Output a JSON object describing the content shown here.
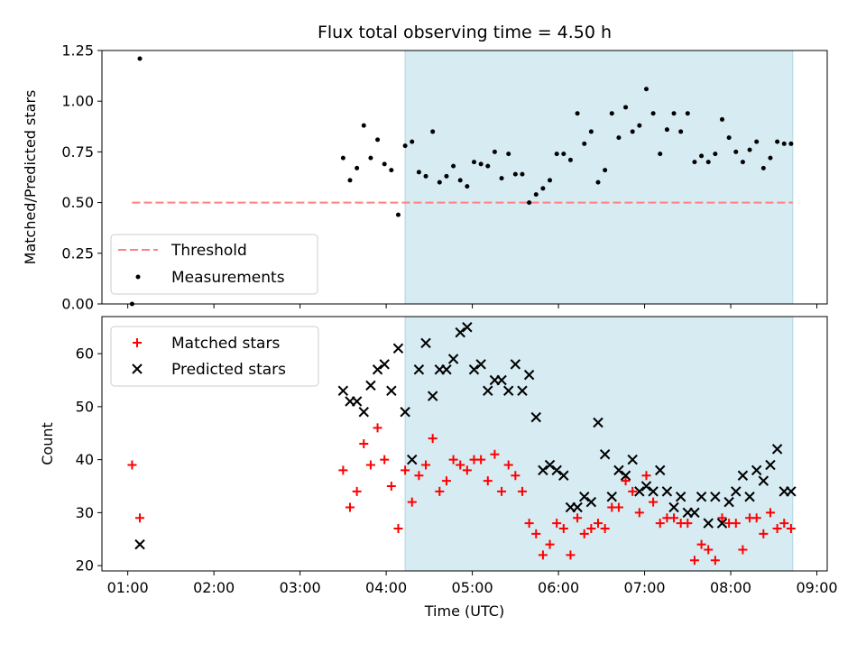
{
  "chart_data": [
    {
      "type": "scatter",
      "title": "Flux total observing time = 4.50 h",
      "ylabel": "Matched/Predicted stars",
      "xlabel": "",
      "ylim": [
        0,
        1.25
      ],
      "yticks": [
        "0.00",
        "0.25",
        "0.50",
        "0.75",
        "1.00",
        "1.25"
      ],
      "ytick_values": [
        0,
        0.25,
        0.5,
        0.75,
        1.0,
        1.25
      ],
      "x_tick_hours": [
        1,
        2,
        3,
        4,
        5,
        6,
        7,
        8,
        9
      ],
      "shaded_region": {
        "start_hour": 4.22,
        "end_hour": 8.72,
        "color": "#add8e6"
      },
      "threshold": {
        "name": "Threshold",
        "value": 0.5,
        "start_hour": 1.05,
        "end_hour": 8.72,
        "color": "#ff8080"
      },
      "legend": {
        "position": "lower-left",
        "entries": [
          "Threshold",
          "Measurements"
        ]
      },
      "series": [
        {
          "name": "Measurements",
          "color": "#000000",
          "x_hours": [
            1.05,
            1.14,
            3.5,
            3.58,
            3.66,
            3.74,
            3.82,
            3.9,
            3.98,
            4.06,
            4.14,
            4.22,
            4.3,
            4.38,
            4.46,
            4.54,
            4.62,
            4.7,
            4.78,
            4.86,
            4.94,
            5.02,
            5.1,
            5.18,
            5.26,
            5.34,
            5.42,
            5.5,
            5.58,
            5.66,
            5.74,
            5.82,
            5.9,
            5.98,
            6.06,
            6.14,
            6.22,
            6.3,
            6.38,
            6.46,
            6.54,
            6.62,
            6.7,
            6.78,
            6.86,
            6.94,
            7.02,
            7.1,
            7.18,
            7.26,
            7.34,
            7.42,
            7.5,
            7.58,
            7.66,
            7.74,
            7.82,
            7.9,
            7.98,
            8.06,
            8.14,
            8.22,
            8.3,
            8.38,
            8.46,
            8.54,
            8.62,
            8.7
          ],
          "y": [
            0.0,
            1.21,
            0.72,
            0.61,
            0.67,
            0.88,
            0.72,
            0.81,
            0.69,
            0.66,
            0.44,
            0.78,
            0.8,
            0.65,
            0.63,
            0.85,
            0.6,
            0.63,
            0.68,
            0.61,
            0.58,
            0.7,
            0.69,
            0.68,
            0.75,
            0.62,
            0.74,
            0.64,
            0.64,
            0.5,
            0.54,
            0.57,
            0.61,
            0.74,
            0.74,
            0.71,
            0.94,
            0.79,
            0.85,
            0.6,
            0.66,
            0.94,
            0.82,
            0.97,
            0.85,
            0.88,
            1.06,
            0.94,
            0.74,
            0.86,
            0.94,
            0.85,
            0.94,
            0.7,
            0.73,
            0.7,
            0.74,
            0.91,
            0.82,
            0.75,
            0.7,
            0.76,
            0.8,
            0.67,
            0.72,
            0.8,
            0.79,
            0.79
          ]
        }
      ]
    },
    {
      "type": "scatter",
      "title": "",
      "ylabel": "Count",
      "xlabel": "Time (UTC)",
      "ylim": [
        19,
        67
      ],
      "yticks": [
        "20",
        "30",
        "40",
        "50",
        "60"
      ],
      "ytick_values": [
        20,
        30,
        40,
        50,
        60
      ],
      "x_tick_hours": [
        1,
        2,
        3,
        4,
        5,
        6,
        7,
        8,
        9
      ],
      "x_tick_labels": [
        "01:00",
        "02:00",
        "03:00",
        "04:00",
        "05:00",
        "06:00",
        "07:00",
        "08:00",
        "09:00"
      ],
      "shaded_region": {
        "start_hour": 4.22,
        "end_hour": 8.72,
        "color": "#add8e6"
      },
      "legend": {
        "position": "top-left",
        "entries": [
          "Matched stars",
          "Predicted stars"
        ]
      },
      "series": [
        {
          "name": "Matched stars",
          "marker": "plus",
          "color": "#ff0000",
          "x_hours": [
            1.05,
            1.14,
            3.5,
            3.58,
            3.66,
            3.74,
            3.82,
            3.9,
            3.98,
            4.06,
            4.14,
            4.22,
            4.3,
            4.38,
            4.46,
            4.54,
            4.62,
            4.7,
            4.78,
            4.86,
            4.94,
            5.02,
            5.1,
            5.18,
            5.26,
            5.34,
            5.42,
            5.5,
            5.58,
            5.66,
            5.74,
            5.82,
            5.9,
            5.98,
            6.06,
            6.14,
            6.22,
            6.3,
            6.38,
            6.46,
            6.54,
            6.62,
            6.7,
            6.78,
            6.86,
            6.94,
            7.02,
            7.1,
            7.18,
            7.26,
            7.34,
            7.42,
            7.5,
            7.58,
            7.66,
            7.74,
            7.82,
            7.9,
            7.98,
            8.06,
            8.14,
            8.22,
            8.3,
            8.38,
            8.46,
            8.54,
            8.62,
            8.7
          ],
          "y": [
            39,
            29,
            38,
            31,
            34,
            43,
            39,
            46,
            40,
            35,
            27,
            38,
            32,
            37,
            39,
            44,
            34,
            36,
            40,
            39,
            38,
            40,
            40,
            36,
            41,
            34,
            39,
            37,
            34,
            28,
            26,
            22,
            24,
            28,
            27,
            22,
            29,
            26,
            27,
            28,
            27,
            31,
            31,
            36,
            34,
            30,
            37,
            32,
            28,
            29,
            29,
            28,
            28,
            21,
            24,
            23,
            21,
            29,
            28,
            28,
            23,
            29,
            29,
            26,
            30,
            27,
            28,
            27
          ]
        },
        {
          "name": "Predicted stars",
          "marker": "x",
          "color": "#000000",
          "x_hours": [
            1.14,
            3.5,
            3.58,
            3.66,
            3.74,
            3.82,
            3.9,
            3.98,
            4.06,
            4.14,
            4.22,
            4.3,
            4.38,
            4.46,
            4.54,
            4.62,
            4.7,
            4.78,
            4.86,
            4.94,
            5.02,
            5.1,
            5.18,
            5.26,
            5.34,
            5.42,
            5.5,
            5.58,
            5.66,
            5.74,
            5.82,
            5.9,
            5.98,
            6.06,
            6.14,
            6.22,
            6.3,
            6.38,
            6.46,
            6.54,
            6.62,
            6.7,
            6.78,
            6.86,
            6.94,
            7.02,
            7.1,
            7.18,
            7.26,
            7.34,
            7.42,
            7.5,
            7.58,
            7.66,
            7.74,
            7.82,
            7.9,
            7.98,
            8.06,
            8.14,
            8.22,
            8.3,
            8.38,
            8.46,
            8.54,
            8.62,
            8.7
          ],
          "y": [
            24,
            53,
            51,
            51,
            49,
            54,
            57,
            58,
            53,
            61,
            49,
            40,
            57,
            62,
            52,
            57,
            57,
            59,
            64,
            65,
            57,
            58,
            53,
            55,
            55,
            53,
            58,
            53,
            56,
            48,
            38,
            39,
            38,
            37,
            31,
            31,
            33,
            32,
            47,
            41,
            33,
            38,
            37,
            40,
            34,
            35,
            34,
            38,
            34,
            31,
            33,
            30,
            30,
            33,
            28,
            33,
            28,
            32,
            34,
            37,
            33,
            38,
            36,
            39,
            42,
            34,
            34
          ]
        }
      ]
    }
  ]
}
